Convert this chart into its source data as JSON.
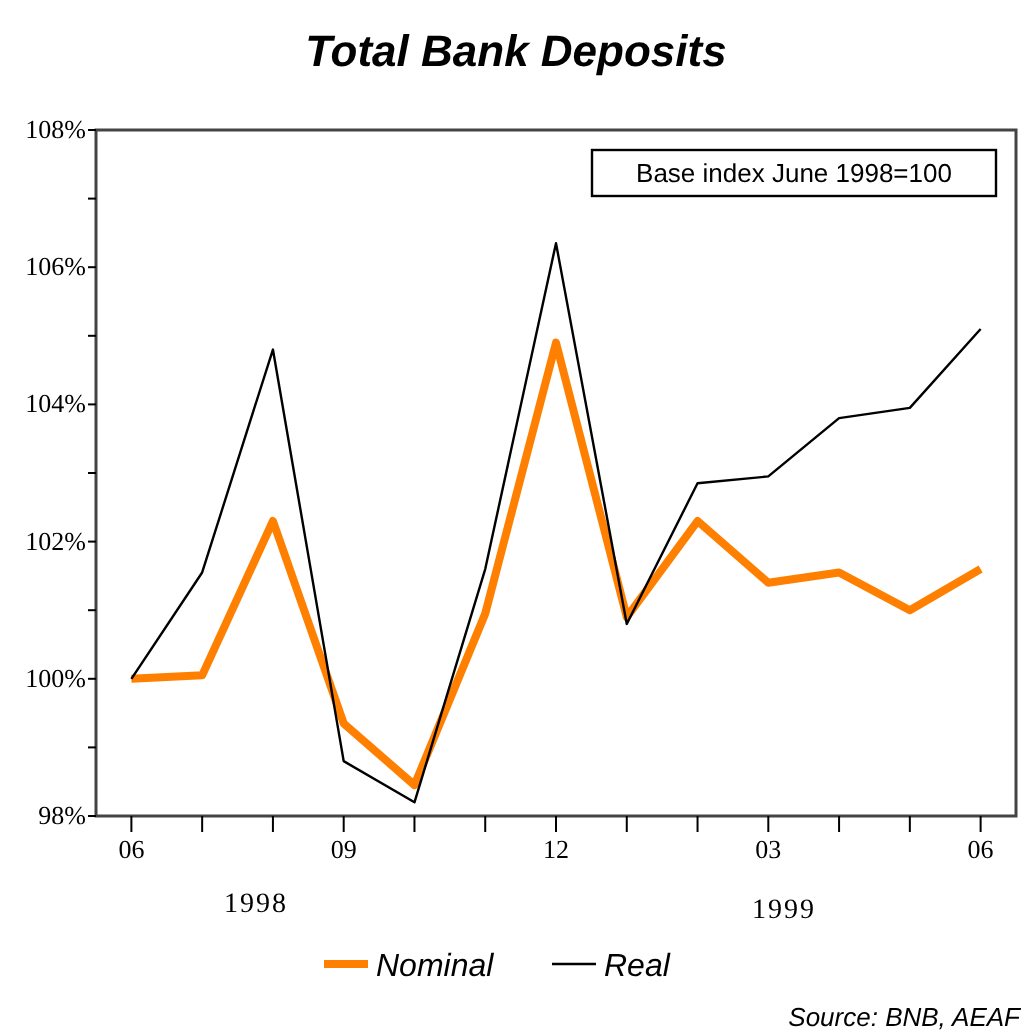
{
  "chart_data": {
    "type": "line",
    "title": "Total Bank Deposits",
    "categories": [
      "06",
      null,
      null,
      "09",
      null,
      null,
      "12",
      null,
      null,
      "03",
      null,
      null,
      "06"
    ],
    "series": [
      {
        "name": "Nominal",
        "color": "#ff8000",
        "values": [
          100.0,
          100.05,
          102.3,
          99.35,
          98.45,
          100.95,
          104.9,
          100.9,
          102.3,
          101.4,
          101.55,
          101.0,
          101.6
        ]
      },
      {
        "name": "Real",
        "color": "#000000",
        "values": [
          100.0,
          101.55,
          104.8,
          98.8,
          98.2,
          101.6,
          106.35,
          100.8,
          102.85,
          102.95,
          103.8,
          103.95,
          105.1
        ]
      }
    ],
    "ylim": [
      98,
      108
    ],
    "yticks": [
      {
        "value": 98,
        "label": "98%"
      },
      {
        "value": 99,
        "label": null
      },
      {
        "value": 100,
        "label": "100%"
      },
      {
        "value": 101,
        "label": null
      },
      {
        "value": 102,
        "label": "102%"
      },
      {
        "value": 103,
        "label": null
      },
      {
        "value": 104,
        "label": "104%"
      },
      {
        "value": 105,
        "label": null
      },
      {
        "value": 106,
        "label": "106%"
      },
      {
        "value": 107,
        "label": null
      },
      {
        "value": 108,
        "label": "108%"
      }
    ],
    "annotations": [
      "Base index June 1998=100",
      "1998",
      "1999",
      "Source: BNB, AEAF"
    ],
    "legend": "bottom",
    "grid": false,
    "marker": "none",
    "line_style": "solid"
  }
}
